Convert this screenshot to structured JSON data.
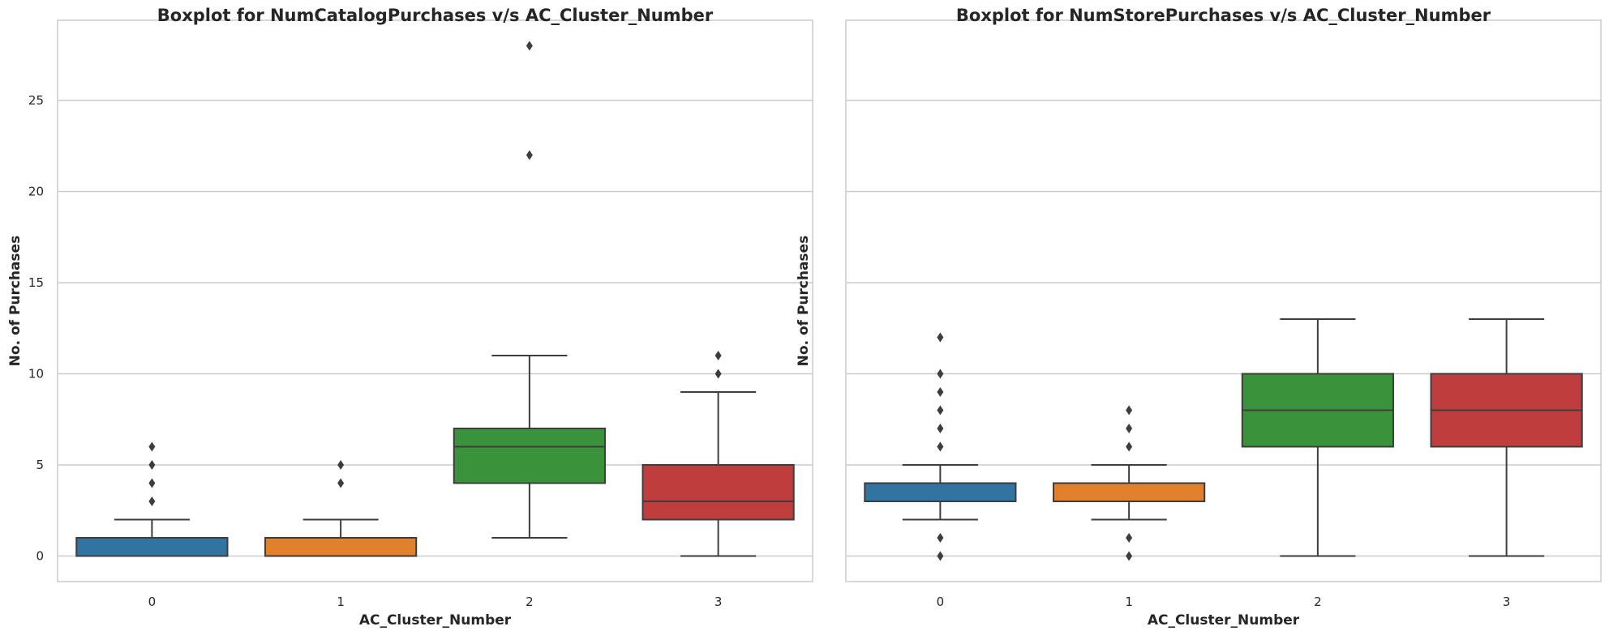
{
  "chart_data": [
    {
      "type": "boxplot",
      "title": "Boxplot for NumCatalogPurchases v/s AC_Cluster_Number",
      "xlabel": "AC_Cluster_Number",
      "ylabel": "No. of Purchases",
      "categories": [
        "0",
        "1",
        "2",
        "3"
      ],
      "ylim": [
        -1.4,
        29.4
      ],
      "yticks": [
        0,
        5,
        10,
        15,
        20,
        25
      ],
      "grid": "horizontal",
      "boxes": [
        {
          "category": "0",
          "color": "#3274a1",
          "whisker_low": 0,
          "q1": 0,
          "median": 0,
          "q3": 1,
          "whisker_high": 2,
          "outliers": [
            3,
            4,
            5,
            6
          ]
        },
        {
          "category": "1",
          "color": "#e1812c",
          "whisker_low": 0,
          "q1": 0,
          "median": 0,
          "q3": 1,
          "whisker_high": 2,
          "outliers": [
            4,
            5
          ]
        },
        {
          "category": "2",
          "color": "#3a923a",
          "whisker_low": 1,
          "q1": 4,
          "median": 6,
          "q3": 7,
          "whisker_high": 11,
          "outliers": [
            22,
            28
          ]
        },
        {
          "category": "3",
          "color": "#c03d3e",
          "whisker_low": 0,
          "q1": 2,
          "median": 3,
          "q3": 5,
          "whisker_high": 9,
          "outliers": [
            10,
            11
          ]
        }
      ]
    },
    {
      "type": "boxplot",
      "title": "Boxplot for NumStorePurchases v/s AC_Cluster_Number",
      "xlabel": "AC_Cluster_Number",
      "ylabel": "No. of Purchases",
      "categories": [
        "0",
        "1",
        "2",
        "3"
      ],
      "ylim": [
        -1.4,
        29.4
      ],
      "yticks": [
        0,
        5,
        10,
        15,
        20,
        25
      ],
      "show_ytick_labels": false,
      "grid": "horizontal",
      "boxes": [
        {
          "category": "0",
          "color": "#3274a1",
          "whisker_low": 2,
          "q1": 3,
          "median": 3,
          "q3": 4,
          "whisker_high": 5,
          "outliers": [
            0,
            1,
            6,
            7,
            8,
            9,
            10,
            12
          ]
        },
        {
          "category": "1",
          "color": "#e1812c",
          "whisker_low": 2,
          "q1": 3,
          "median": 3,
          "q3": 4,
          "whisker_high": 5,
          "outliers": [
            0,
            1,
            6,
            7,
            8
          ]
        },
        {
          "category": "2",
          "color": "#3a923a",
          "whisker_low": 0,
          "q1": 6,
          "median": 8,
          "q3": 10,
          "whisker_high": 13,
          "outliers": []
        },
        {
          "category": "3",
          "color": "#c03d3e",
          "whisker_low": 0,
          "q1": 6,
          "median": 8,
          "q3": 10,
          "whisker_high": 13,
          "outliers": []
        }
      ]
    }
  ]
}
